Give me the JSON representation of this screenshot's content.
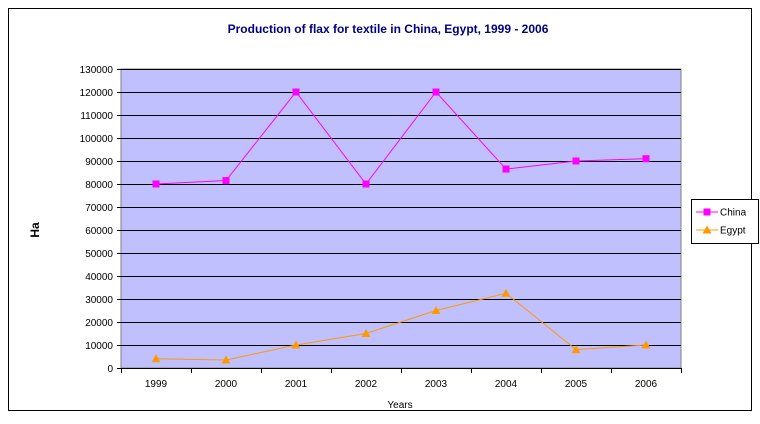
{
  "colors": {
    "plot_bg": "#c0c0ff",
    "title": "#000080",
    "grid": "#000000",
    "china": "#ff00ff",
    "egypt": "#ff9900"
  },
  "chart_data": {
    "type": "line",
    "title": "Production of flax for textile in China, Egypt,  1999 - 2006",
    "xlabel": "Years",
    "ylabel": "Ha",
    "ylim": [
      0,
      130000
    ],
    "yticks": [
      0,
      10000,
      20000,
      30000,
      40000,
      50000,
      60000,
      70000,
      80000,
      90000,
      100000,
      110000,
      120000,
      130000
    ],
    "categories": [
      "1999",
      "2000",
      "2001",
      "2002",
      "2003",
      "2004",
      "2005",
      "2006"
    ],
    "grid": true,
    "legend": "right",
    "series": [
      {
        "name": "China",
        "marker": "square",
        "values": [
          80000,
          81500,
          120000,
          80000,
          120000,
          86500,
          90000,
          91000
        ]
      },
      {
        "name": "Egypt",
        "marker": "triangle",
        "values": [
          4000,
          3500,
          10000,
          15000,
          25000,
          32500,
          8000,
          10000
        ]
      }
    ]
  }
}
